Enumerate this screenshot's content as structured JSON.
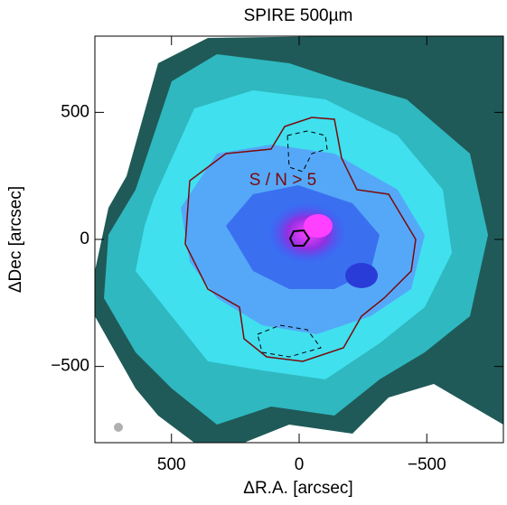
{
  "chart_data": {
    "type": "image",
    "title": "SPIRE 500µm",
    "xlabel": "ΔR.A. [arcsec]",
    "ylabel": "ΔDec [arcsec]",
    "annotation": "S / N > 5",
    "xlim": [
      800,
      -800
    ],
    "ylim": [
      -800,
      800
    ],
    "xticks": [
      500,
      0,
      {
        "value": -500,
        "label": "−500"
      }
    ],
    "yticks": [
      {
        "value": -500,
        "label": "−500"
      },
      0,
      500
    ]
  }
}
